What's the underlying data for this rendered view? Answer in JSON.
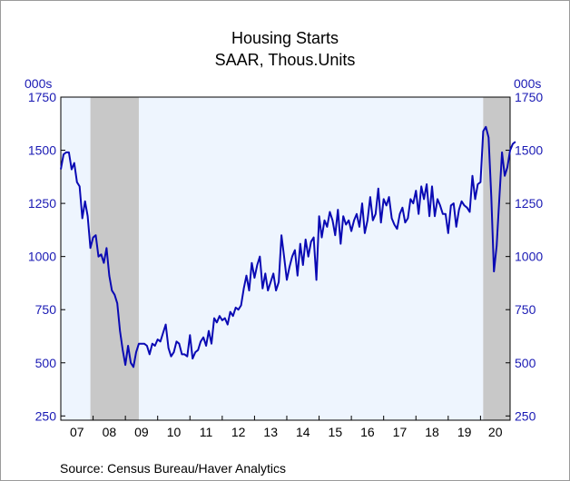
{
  "chart_data": {
    "type": "line",
    "title": "Housing Starts",
    "subtitle": "SAAR, Thous.Units",
    "y_unit_left": "000s",
    "y_unit_right": "000s",
    "source": "Source:  Census Bureau/Haver Analytics",
    "ylim": [
      230,
      1750
    ],
    "yticks": [
      250,
      500,
      750,
      1000,
      1250,
      1500,
      1750
    ],
    "xlim": [
      2007.0,
      2020.9167
    ],
    "xticks": [
      "07",
      "08",
      "09",
      "10",
      "11",
      "12",
      "13",
      "14",
      "15",
      "16",
      "17",
      "18",
      "19",
      "20"
    ],
    "recessions": [
      [
        2007.9167,
        2009.4167
      ],
      [
        2020.0833,
        2020.9167
      ]
    ],
    "colors": {
      "line": "#0A0AB4",
      "plot_bg": "#EEF5FE",
      "recession": "#C8C8C8",
      "axis_text": "#1A1AB4"
    },
    "series": [
      {
        "x_start": "2007-01",
        "frequency": "monthly",
        "values": [
          1410,
          1480,
          1490,
          1490,
          1410,
          1440,
          1350,
          1330,
          1180,
          1260,
          1190,
          1040,
          1090,
          1100,
          1000,
          1010,
          970,
          1040,
          910,
          840,
          820,
          780,
          650,
          560,
          490,
          580,
          500,
          480,
          550,
          590,
          590,
          590,
          580,
          540,
          590,
          580,
          610,
          600,
          640,
          680,
          570,
          530,
          550,
          600,
          590,
          540,
          540,
          530,
          630,
          520,
          550,
          560,
          600,
          620,
          580,
          650,
          590,
          710,
          690,
          720,
          700,
          710,
          680,
          740,
          720,
          760,
          750,
          770,
          850,
          910,
          840,
          970,
          900,
          960,
          1000,
          850,
          920,
          840,
          880,
          920,
          840,
          880,
          1100,
          1000,
          890,
          950,
          1000,
          1030,
          910,
          1060,
          960,
          1080,
          1000,
          1070,
          1090,
          890,
          1190,
          1090,
          1170,
          1140,
          1210,
          1170,
          1100,
          1220,
          1060,
          1190,
          1150,
          1170,
          1120,
          1170,
          1200,
          1140,
          1250,
          1110,
          1170,
          1280,
          1170,
          1200,
          1320,
          1160,
          1270,
          1240,
          1280,
          1180,
          1150,
          1130,
          1200,
          1230,
          1160,
          1180,
          1270,
          1250,
          1310,
          1200,
          1330,
          1270,
          1340,
          1190,
          1330,
          1190,
          1270,
          1240,
          1200,
          1200,
          1110,
          1240,
          1250,
          1140,
          1220,
          1260,
          1240,
          1230,
          1210,
          1380,
          1270,
          1340,
          1350,
          1590,
          1610,
          1560,
          1280,
          930,
          1050,
          1270,
          1490,
          1380,
          1420,
          1500,
          1530,
          1540
        ]
      }
    ]
  }
}
